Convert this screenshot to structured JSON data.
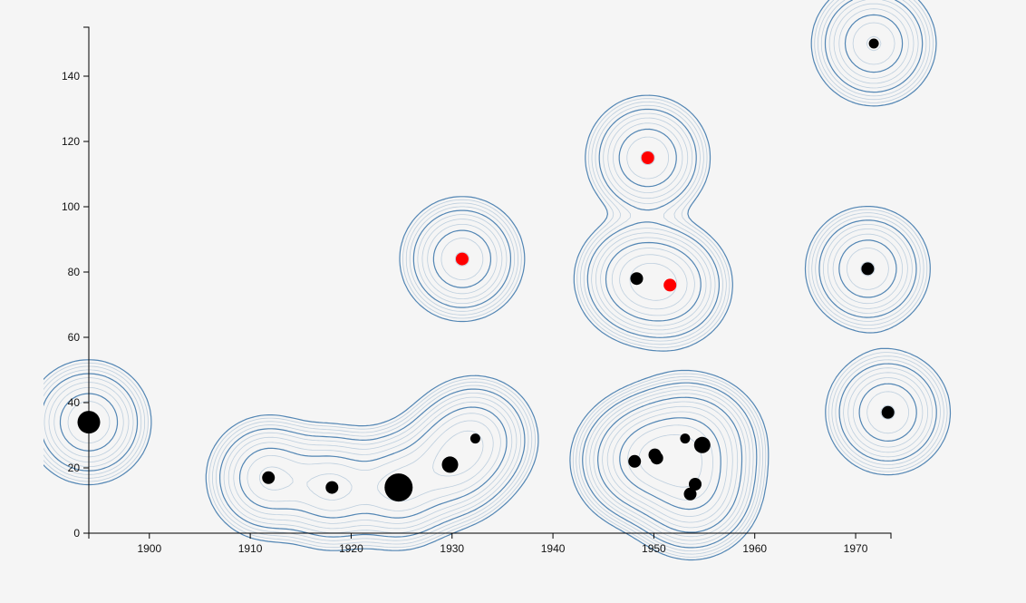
{
  "chart_data": {
    "type": "scatter",
    "subtype": "density-contour",
    "title": "",
    "xlabel": "",
    "ylabel": "",
    "xlim": [
      1894,
      1973.5
    ],
    "ylim": [
      0,
      155
    ],
    "x_ticks": [
      1900,
      1910,
      1920,
      1930,
      1940,
      1950,
      1960,
      1970
    ],
    "y_ticks": [
      0,
      20,
      40,
      60,
      80,
      100,
      120,
      140
    ],
    "grid": false,
    "legend": "none",
    "colors": {
      "background": "#f5f5f5",
      "contour_outer": "#4a7fb0",
      "contour_inner": "#b8cbdc",
      "point_default": "#000000",
      "point_highlight": "#ff0000",
      "axis": "#000000"
    },
    "points": [
      {
        "x": 1894,
        "y": 34,
        "size": "large",
        "highlight": false
      },
      {
        "x": 1911.8,
        "y": 17,
        "size": "small",
        "highlight": false
      },
      {
        "x": 1918.1,
        "y": 14,
        "size": "small",
        "highlight": false
      },
      {
        "x": 1924.7,
        "y": 14,
        "size": "xlarge",
        "highlight": false
      },
      {
        "x": 1929.8,
        "y": 21,
        "size": "medium",
        "highlight": false
      },
      {
        "x": 1932.3,
        "y": 29,
        "size": "tiny",
        "highlight": false
      },
      {
        "x": 1931.0,
        "y": 84,
        "size": "small",
        "highlight": true
      },
      {
        "x": 1949.4,
        "y": 115,
        "size": "small",
        "highlight": true
      },
      {
        "x": 1948.3,
        "y": 78,
        "size": "small",
        "highlight": false
      },
      {
        "x": 1951.6,
        "y": 76,
        "size": "small",
        "highlight": true
      },
      {
        "x": 1948.1,
        "y": 22,
        "size": "small",
        "highlight": false
      },
      {
        "x": 1950.1,
        "y": 24,
        "size": "small",
        "highlight": false
      },
      {
        "x": 1950.3,
        "y": 23,
        "size": "small",
        "highlight": false
      },
      {
        "x": 1953.1,
        "y": 29,
        "size": "tiny",
        "highlight": false
      },
      {
        "x": 1954.8,
        "y": 27,
        "size": "medium",
        "highlight": false
      },
      {
        "x": 1954.1,
        "y": 15,
        "size": "small",
        "highlight": false
      },
      {
        "x": 1953.6,
        "y": 12,
        "size": "small",
        "highlight": false
      },
      {
        "x": 1971.8,
        "y": 150,
        "size": "tiny",
        "highlight": false
      },
      {
        "x": 1971.2,
        "y": 81,
        "size": "small",
        "highlight": false
      },
      {
        "x": 1973.2,
        "y": 37,
        "size": "small",
        "highlight": false
      }
    ]
  }
}
